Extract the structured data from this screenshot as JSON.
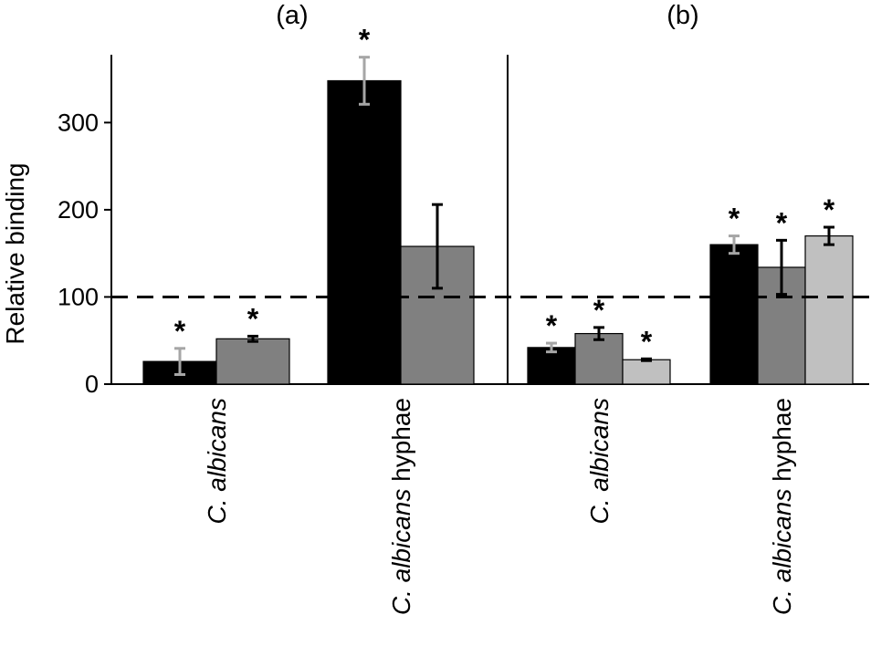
{
  "chart_data": {
    "type": "bar",
    "ylabel": "Relative binding",
    "ylim": [
      0,
      380
    ],
    "yticks": [
      "0",
      "100",
      "200",
      "300"
    ],
    "reference_line": 100,
    "panels": [
      {
        "label": "(a)",
        "groups": [
          {
            "label_italic": "C. albicans",
            "label_rest": "",
            "bars": [
              {
                "value": 26,
                "error": 15,
                "color": "#000000",
                "error_color": "#a6a6a6",
                "star": "*"
              },
              {
                "value": 52,
                "error": 3,
                "color": "#808080",
                "error_color": "#000000",
                "star": "*"
              }
            ]
          },
          {
            "label_italic": "C. albicans",
            "label_rest": " hyphae",
            "bars": [
              {
                "value": 348,
                "error": 27,
                "color": "#000000",
                "error_color": "#a6a6a6",
                "star": "*"
              },
              {
                "value": 158,
                "error": 48,
                "color": "#808080",
                "error_color": "#000000",
                "star": ""
              }
            ]
          }
        ]
      },
      {
        "label": "(b)",
        "groups": [
          {
            "label_italic": "C. albicans",
            "label_rest": "",
            "bars": [
              {
                "value": 42,
                "error": 5,
                "color": "#000000",
                "error_color": "#a6a6a6",
                "star": "*"
              },
              {
                "value": 58,
                "error": 7,
                "color": "#808080",
                "error_color": "#000000",
                "star": "*"
              },
              {
                "value": 28,
                "error": 1,
                "color": "#c0c0c0",
                "error_color": "#000000",
                "star": "*"
              }
            ]
          },
          {
            "label_italic": "C. albicans",
            "label_rest": " hyphae",
            "bars": [
              {
                "value": 160,
                "error": 10,
                "color": "#000000",
                "error_color": "#a6a6a6",
                "star": "*"
              },
              {
                "value": 134,
                "error": 31,
                "color": "#808080",
                "error_color": "#000000",
                "star": "*"
              },
              {
                "value": 170,
                "error": 10,
                "color": "#c0c0c0",
                "error_color": "#000000",
                "star": "*"
              }
            ]
          }
        ]
      }
    ]
  }
}
